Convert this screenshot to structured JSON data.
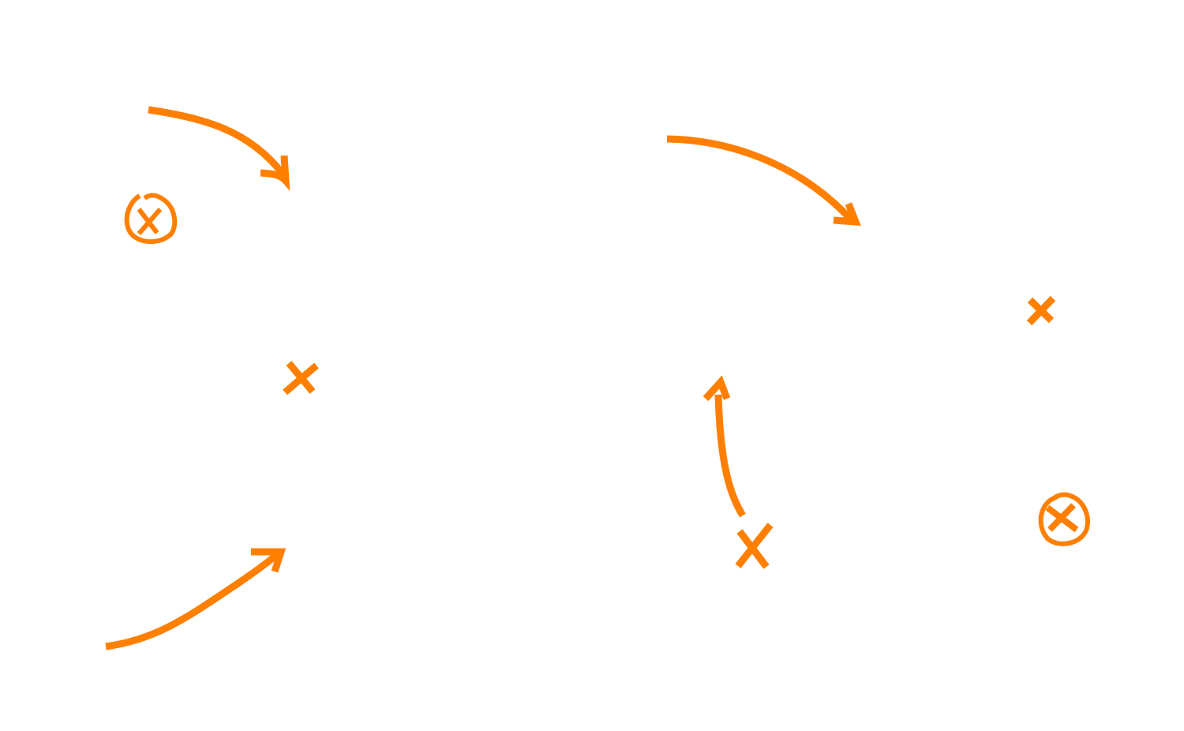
{
  "colors": {
    "background": "#ffffff",
    "ink": "#ff7f00"
  },
  "marks": [
    {
      "name": "circled-x-mark-left",
      "icon": "circled-x-icon"
    },
    {
      "name": "x-mark-center-left",
      "icon": "x-icon"
    },
    {
      "name": "x-mark-right",
      "icon": "x-icon"
    },
    {
      "name": "x-mark-bottom-center",
      "icon": "x-icon"
    },
    {
      "name": "circled-x-mark-bottom-right",
      "icon": "circled-x-icon"
    }
  ],
  "arrows": [
    {
      "name": "curved-arrow-top-left",
      "direction": "right-down"
    },
    {
      "name": "curved-arrow-bottom-left",
      "direction": "right-up"
    },
    {
      "name": "curved-arrow-top-right",
      "direction": "right-down"
    },
    {
      "name": "curved-arrow-center",
      "direction": "up"
    }
  ]
}
